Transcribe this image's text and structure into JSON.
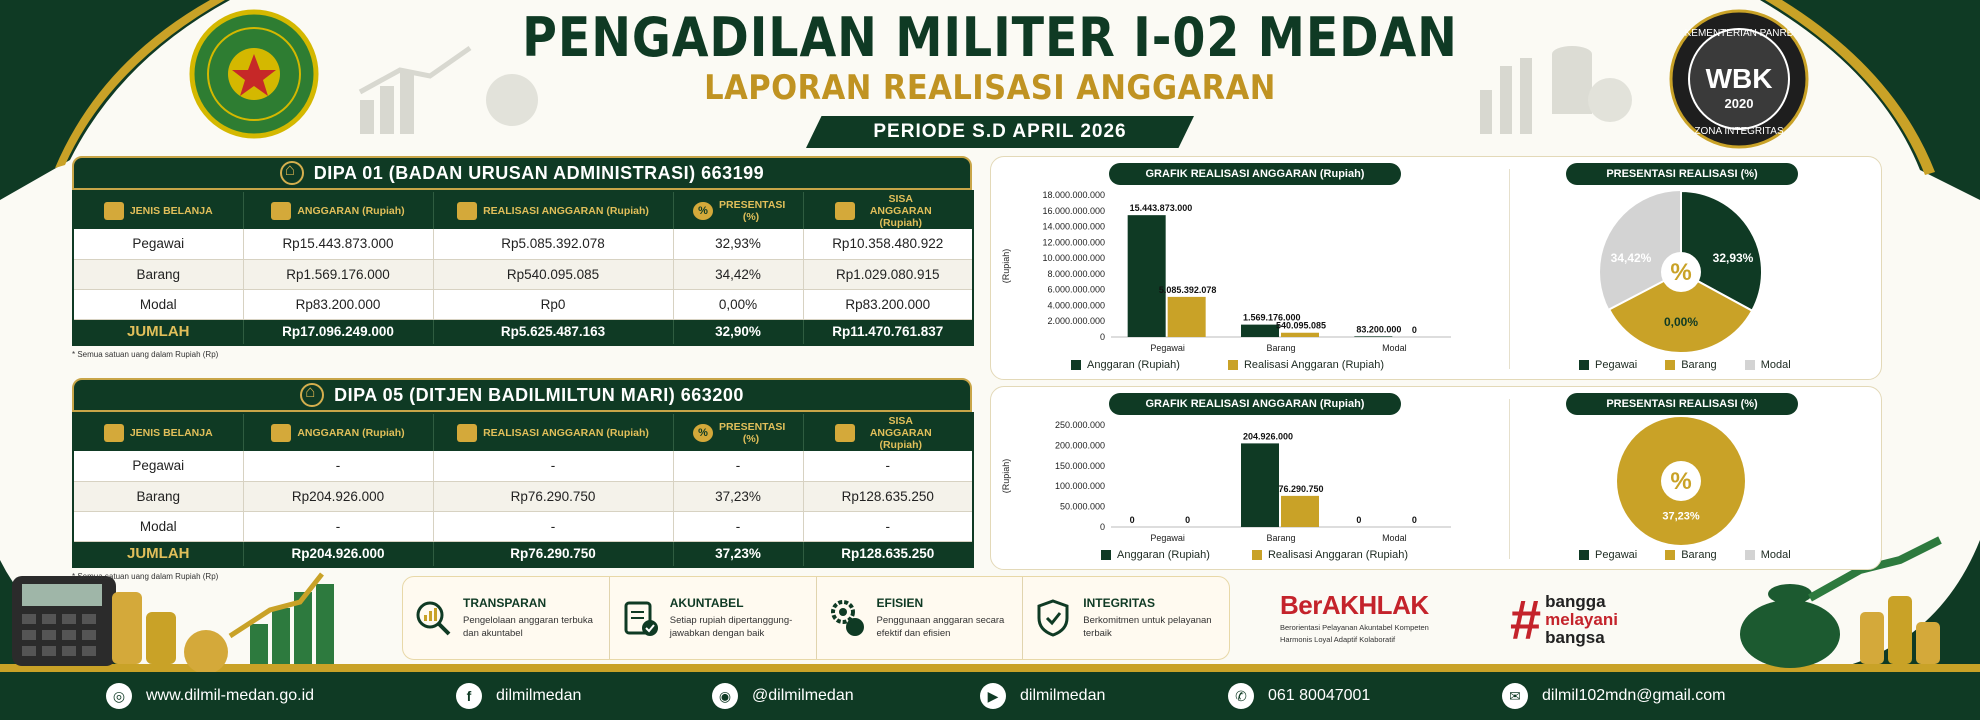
{
  "header": {
    "title": "PENGADILAN MILITER I-02 MEDAN",
    "subtitle": "LAPORAN REALISASI ANGGARAN",
    "periode": "PERIODE S.D APRIL 2026",
    "logo_left_text": "PENGADILAN MILITER I-02 MEDAN",
    "badge_top": "KEMENTERIAN PANRB",
    "badge_mid": "WBK",
    "badge_year": "2020",
    "badge_bottom": "ZONA INTEGRITAS"
  },
  "columns": [
    "JENIS BELANJA",
    "ANGGARAN (Rupiah)",
    "REALISASI ANGGARAN (Rupiah)",
    "PRESENTASI (%)",
    "SISA ANGGARAN (Rupiah)"
  ],
  "dipa1": {
    "title": "DIPA 01 (BADAN URUSAN ADMINISTRASI)  663199",
    "rows": [
      [
        "Pegawai",
        "Rp15.443.873.000",
        "Rp5.085.392.078",
        "32,93%",
        "Rp10.358.480.922"
      ],
      [
        "Barang",
        "Rp1.569.176.000",
        "Rp540.095.085",
        "34,42%",
        "Rp1.029.080.915"
      ],
      [
        "Modal",
        "Rp83.200.000",
        "Rp0",
        "0,00%",
        "Rp83.200.000"
      ]
    ],
    "total": [
      "JUMLAH",
      "Rp17.096.249.000",
      "Rp5.625.487.163",
      "32,90%",
      "Rp11.470.761.837"
    ],
    "note": "* Semua satuan uang dalam Rupiah (Rp)"
  },
  "dipa5": {
    "title": "DIPA 05 (DITJEN BADILMILTUN MARI)  663200",
    "rows": [
      [
        "Pegawai",
        "-",
        "-",
        "-",
        "-"
      ],
      [
        "Barang",
        "Rp204.926.000",
        "Rp76.290.750",
        "37,23%",
        "Rp128.635.250"
      ],
      [
        "Modal",
        "-",
        "-",
        "-",
        "-"
      ]
    ],
    "total": [
      "JUMLAH",
      "Rp204.926.000",
      "Rp76.290.750",
      "37,23%",
      "Rp128.635.250"
    ],
    "note": "* Semua satuan uang dalam Rupiah (Rp)"
  },
  "colors": {
    "green": "#0f3a24",
    "gold": "#c9a227",
    "grey": "#d3d3d3"
  },
  "chart_data": [
    {
      "type": "bar",
      "title": "GRAFIK REALISASI ANGGARAN (Rupiah)",
      "ylabel": "(Rupiah)",
      "categories": [
        "Pegawai",
        "Barang",
        "Modal"
      ],
      "series": [
        {
          "name": "Anggaran (Rupiah)",
          "values": [
            15443873000,
            1569176000,
            83200000
          ],
          "labels": [
            "15.443.873.000",
            "1.569.176.000",
            "83.200.000"
          ]
        },
        {
          "name": "Realisasi Anggaran (Rupiah)",
          "values": [
            5085392078,
            540095085,
            0
          ],
          "labels": [
            "5.085.392.078",
            "540.095.085",
            "0"
          ]
        }
      ],
      "ylim": [
        0,
        18000000000
      ],
      "yticks": [
        0,
        2000000000,
        4000000000,
        6000000000,
        8000000000,
        10000000000,
        12000000000,
        14000000000,
        16000000000,
        18000000000
      ],
      "ytick_labels": [
        "0",
        "2.000.000.000",
        "4.000.000.000",
        "6.000.000.000",
        "8.000.000.000",
        "10.000.000.000",
        "12.000.000.000",
        "14.000.000.000",
        "16.000.000.000",
        "18.000.000.000"
      ],
      "legend_position": "bottom"
    },
    {
      "type": "pie",
      "title": "PRESENTASI REALISASI (%)",
      "center_text": "%",
      "categories": [
        "Pegawai",
        "Barang",
        "Modal"
      ],
      "values": [
        32.93,
        34.42,
        0.0
      ],
      "labels": [
        "32,93%",
        "34,42%",
        "0,00%"
      ],
      "legend_position": "bottom"
    },
    {
      "type": "bar",
      "title": "GRAFIK REALISASI ANGGARAN (Rupiah)",
      "ylabel": "(Rupiah)",
      "categories": [
        "Pegawai",
        "Barang",
        "Modal"
      ],
      "series": [
        {
          "name": "Anggaran (Rupiah)",
          "values": [
            0,
            204926000,
            0
          ],
          "labels": [
            "0",
            "204.926.000",
            "0"
          ]
        },
        {
          "name": "Realisasi  Anggaran  (Rupiah)",
          "values": [
            0,
            76290750,
            0
          ],
          "labels": [
            "0",
            "76.290.750",
            "0"
          ]
        }
      ],
      "ylim": [
        0,
        250000000
      ],
      "yticks": [
        0,
        50000000,
        100000000,
        150000000,
        200000000,
        250000000
      ],
      "ytick_labels": [
        "0",
        "50.000.000",
        "100.000.000",
        "150.000.000",
        "200.000.000",
        "250.000.000"
      ],
      "legend_position": "bottom"
    },
    {
      "type": "pie",
      "title": "PRESENTASI REALISASI (%)",
      "center_text": "%",
      "categories": [
        "Pegawai",
        "Barang",
        "Modal"
      ],
      "values": [
        0,
        37.23,
        0
      ],
      "labels": [
        "",
        "37,23%",
        ""
      ],
      "legend_position": "bottom"
    }
  ],
  "pillars": [
    {
      "title": "TRANSPARAN",
      "desc": "Pengelolaan anggaran terbuka dan akuntabel",
      "icon": "magnifier-chart-icon"
    },
    {
      "title": "AKUNTABEL",
      "desc": "Setiap rupiah dipertanggung-jawabkan dengan baik",
      "icon": "clipboard-check-icon"
    },
    {
      "title": "EFISIEN",
      "desc": "Penggunaan anggaran secara efektif dan efisien",
      "icon": "gear-coin-icon"
    },
    {
      "title": "INTEGRITAS",
      "desc": "Berkomitmen untuk pelayanan terbaik",
      "icon": "shield-check-icon"
    }
  ],
  "berakhlak": {
    "name": "BerAKHLAK",
    "desc1": "Berorientasi Pelayanan Akuntabel Kompeten",
    "desc2": "Harmonis Loyal Adaptif Kolaboratif"
  },
  "bangga": {
    "line1": "bangga",
    "line2": "melayani",
    "line3": "bangsa"
  },
  "footer": {
    "website": "www.dilmil-medan.go.id",
    "facebook": "dilmilmedan",
    "instagram": "@dilmilmedan",
    "youtube": "dilmilmedan",
    "phone": "061 80047001",
    "email": "dilmil102mdn@gmail.com"
  }
}
